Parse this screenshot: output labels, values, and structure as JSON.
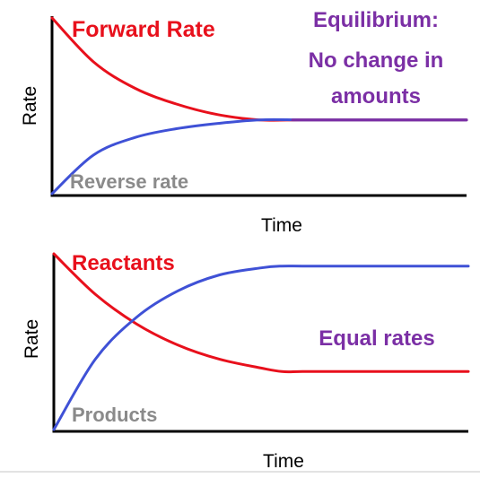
{
  "colors": {
    "red": "#e8101c",
    "blue": "#3f51d6",
    "purple": "#7b2fa5",
    "gray": "#8a8a8a"
  },
  "chart_data": [
    {
      "type": "line",
      "title": "",
      "xlabel": "Time",
      "ylabel": "Rate",
      "ylim": [
        0,
        1
      ],
      "x_range": [
        0,
        1
      ],
      "series": [
        {
          "label": "Forward Rate",
          "color": "red",
          "x": [
            0,
            0.1,
            0.2,
            0.3,
            0.4,
            0.5,
            0.6,
            0.7,
            0.8,
            0.9,
            1.0
          ],
          "values": [
            1.0,
            0.75,
            0.6,
            0.51,
            0.45,
            0.42,
            0.42,
            0.42,
            0.42,
            0.42,
            0.42
          ]
        },
        {
          "label": "Reverse rate",
          "color": "blue",
          "x": [
            0,
            0.1,
            0.2,
            0.3,
            0.4,
            0.5,
            0.6,
            0.7,
            0.8,
            0.9,
            1.0
          ],
          "values": [
            0.0,
            0.22,
            0.32,
            0.37,
            0.4,
            0.42,
            0.42,
            0.42,
            0.42,
            0.42,
            0.42
          ]
        },
        {
          "label": "",
          "color": "purple",
          "x": [
            0.58,
            1.0
          ],
          "values": [
            0.42,
            0.42
          ]
        }
      ],
      "annotations": [
        "Equilibrium:",
        "No change in",
        "amounts"
      ]
    },
    {
      "type": "line",
      "title": "",
      "xlabel": "Time",
      "ylabel": "Rate",
      "ylim": [
        0,
        1
      ],
      "x_range": [
        0,
        1
      ],
      "series": [
        {
          "label": "Reactants",
          "color": "red",
          "x": [
            0,
            0.1,
            0.2,
            0.3,
            0.4,
            0.5,
            0.55,
            0.6,
            0.7,
            0.8,
            0.9,
            1.0
          ],
          "values": [
            1.0,
            0.77,
            0.6,
            0.48,
            0.4,
            0.35,
            0.33,
            0.33,
            0.33,
            0.33,
            0.33,
            0.33
          ]
        },
        {
          "label": "Products",
          "color": "blue",
          "x": [
            0,
            0.1,
            0.2,
            0.3,
            0.4,
            0.5,
            0.55,
            0.6,
            0.7,
            0.8,
            0.9,
            1.0
          ],
          "values": [
            0.0,
            0.4,
            0.64,
            0.79,
            0.88,
            0.92,
            0.93,
            0.93,
            0.93,
            0.93,
            0.93,
            0.93
          ]
        }
      ],
      "annotations": [
        "Equal rates"
      ]
    }
  ]
}
